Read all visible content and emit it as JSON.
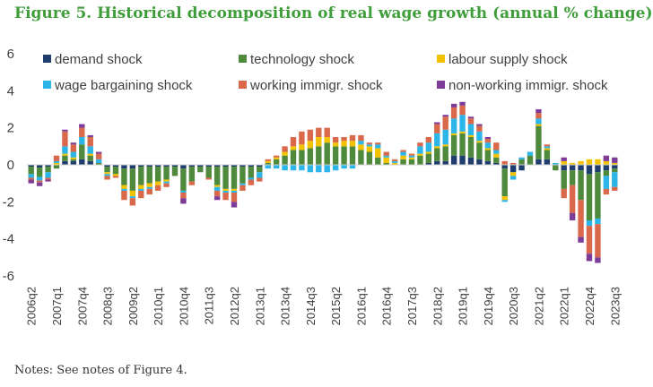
{
  "title": "Figure 5. Historical decomposition of real wage growth (annual % change)",
  "notes": "Notes: See notes of Figure 4.",
  "chart_data": {
    "type": "bar",
    "stacked": true,
    "ylim": [
      -6,
      6
    ],
    "yticks": [
      -6,
      -4,
      -2,
      0,
      2,
      4,
      6
    ],
    "ytick_labels": [
      "-6",
      "-4",
      "-2",
      "0",
      "2",
      "4",
      "6"
    ],
    "grid": false,
    "legend_position": "top",
    "categories": [
      "2006q2",
      "2006q3",
      "2006q4",
      "2007q1",
      "2007q2",
      "2007q3",
      "2007q4",
      "2008q1",
      "2008q2",
      "2008q3",
      "2008q4",
      "2009q1",
      "2009q2",
      "2009q3",
      "2009q4",
      "2010q1",
      "2010q2",
      "2010q3",
      "2010q4",
      "2011q1",
      "2011q2",
      "2011q3",
      "2011q4",
      "2012q1",
      "2012q2",
      "2012q3",
      "2012q4",
      "2013q1",
      "2013q2",
      "2013q3",
      "2013q4",
      "2014q1",
      "2014q2",
      "2014q3",
      "2014q4",
      "2015q1",
      "2015q2",
      "2015q3",
      "2015q4",
      "2016q1",
      "2016q2",
      "2016q3",
      "2016q4",
      "2017q1",
      "2017q2",
      "2017q3",
      "2017q4",
      "2018q1",
      "2018q2",
      "2018q3",
      "2018q4",
      "2019q1",
      "2019q2",
      "2019q3",
      "2019q4",
      "2020q1",
      "2020q2",
      "2020q3",
      "2020q4",
      "2021q1",
      "2021q2",
      "2021q3",
      "2021q4",
      "2022q1",
      "2022q2",
      "2022q3",
      "2022q4",
      "2023q1",
      "2023q2",
      "2023q3"
    ],
    "tick_labels": [
      "2006q2",
      "2007q1",
      "2007q4",
      "2008q3",
      "2009q2",
      "2010q1",
      "2010q4",
      "2011q3",
      "2012q2",
      "2013q1",
      "2013q4",
      "2014q3",
      "2015q2",
      "2016q1",
      "2016q4",
      "2017q3",
      "2018q2",
      "2019q1",
      "2019q4",
      "2020q3",
      "2021q2",
      "2022q1",
      "2022q4",
      "2023q3"
    ],
    "series": [
      {
        "name": "demand shock",
        "color": "#1f3e6e",
        "values": [
          -0.1,
          -0.15,
          -0.1,
          0.0,
          0.2,
          0.2,
          0.3,
          0.2,
          0.0,
          -0.1,
          -0.1,
          -0.2,
          -0.2,
          -0.1,
          -0.1,
          -0.1,
          -0.1,
          -0.1,
          -0.2,
          -0.1,
          -0.1,
          -0.1,
          -0.1,
          -0.1,
          -0.1,
          -0.1,
          -0.1,
          -0.1,
          0.0,
          0.0,
          0.0,
          0.0,
          0.0,
          0.0,
          0.0,
          0.0,
          0.0,
          0.0,
          0.0,
          0.0,
          0.0,
          0.0,
          0.0,
          0.0,
          0.0,
          0.0,
          0.0,
          0.1,
          0.2,
          0.2,
          0.5,
          0.5,
          0.4,
          0.3,
          0.2,
          0.1,
          -0.2,
          -0.4,
          -0.3,
          0.0,
          0.3,
          0.3,
          0.0,
          -0.3,
          -0.3,
          -0.3,
          -0.5,
          -0.4,
          -0.3,
          -0.2
        ]
      },
      {
        "name": "technology shock",
        "color": "#4f8a3c",
        "values": [
          -0.4,
          -0.5,
          -0.3,
          -0.2,
          0.3,
          0.1,
          0.8,
          0.3,
          0.1,
          -0.3,
          -0.4,
          -0.9,
          -1.2,
          -1.0,
          -0.9,
          -0.8,
          -0.7,
          -0.5,
          -1.2,
          -0.8,
          -0.3,
          -0.6,
          -1.0,
          -1.2,
          -1.2,
          -0.9,
          -0.6,
          -0.3,
          0.1,
          0.3,
          0.5,
          0.8,
          0.8,
          0.9,
          1.0,
          1.2,
          1.0,
          1.0,
          1.0,
          0.8,
          0.7,
          0.4,
          0.1,
          0.0,
          0.3,
          0.3,
          0.5,
          0.5,
          0.7,
          0.8,
          1.1,
          1.2,
          1.1,
          0.9,
          0.6,
          0.3,
          -1.5,
          0.0,
          0.3,
          0.5,
          1.8,
          0.5,
          -0.3,
          -1.0,
          -0.8,
          -1.6,
          -2.5,
          -2.5,
          -0.3,
          -0.2
        ]
      },
      {
        "name": "labour supply shock",
        "color": "#f2c200",
        "values": [
          0.0,
          0.0,
          0.0,
          0.1,
          0.1,
          0.1,
          0.0,
          0.1,
          0.0,
          -0.1,
          -0.1,
          -0.2,
          -0.3,
          -0.2,
          -0.2,
          -0.2,
          -0.1,
          0.0,
          0.0,
          0.0,
          0.0,
          0.0,
          -0.1,
          -0.1,
          -0.1,
          0.0,
          0.0,
          0.0,
          0.1,
          0.1,
          0.2,
          0.2,
          0.3,
          0.4,
          0.5,
          0.3,
          0.2,
          0.3,
          0.3,
          0.3,
          0.3,
          0.5,
          0.3,
          0.1,
          0.2,
          0.1,
          0.1,
          0.1,
          0.1,
          0.1,
          0.1,
          0.1,
          0.1,
          0.1,
          0.1,
          0.2,
          -0.2,
          -0.2,
          0.0,
          0.0,
          0.1,
          0.1,
          0.0,
          0.2,
          0.1,
          0.2,
          0.3,
          0.3,
          0.2,
          0.1
        ]
      },
      {
        "name": "wage bargaining shock",
        "color": "#2bb5e8",
        "values": [
          -0.2,
          -0.2,
          -0.3,
          0.1,
          0.4,
          0.3,
          0.4,
          0.4,
          0.2,
          -0.1,
          0.0,
          -0.1,
          -0.1,
          -0.1,
          -0.1,
          0.0,
          -0.1,
          0.0,
          -0.1,
          0.0,
          0.0,
          0.0,
          -0.2,
          -0.1,
          -0.1,
          -0.1,
          -0.1,
          -0.3,
          -0.2,
          -0.2,
          -0.3,
          -0.3,
          -0.3,
          -0.4,
          -0.4,
          -0.4,
          -0.3,
          -0.2,
          -0.2,
          0.2,
          0.1,
          0.2,
          0.1,
          0.1,
          0.2,
          0.1,
          0.4,
          0.5,
          0.7,
          0.8,
          0.8,
          0.9,
          0.6,
          0.5,
          0.3,
          0.2,
          -0.1,
          -0.2,
          0.1,
          0.2,
          0.3,
          0.1,
          0.1,
          0.0,
          0.0,
          0.0,
          -0.3,
          -0.3,
          -0.7,
          -0.8
        ]
      },
      {
        "name": "working immigr. shock",
        "color": "#d9694a",
        "values": [
          -0.1,
          -0.1,
          -0.1,
          0.3,
          0.8,
          0.4,
          0.5,
          0.5,
          0.3,
          -0.2,
          -0.1,
          -0.5,
          -0.4,
          -0.4,
          -0.3,
          -0.3,
          -0.2,
          0.0,
          -0.3,
          -0.2,
          0.0,
          -0.1,
          -0.3,
          -0.4,
          -0.5,
          -0.3,
          -0.3,
          -0.2,
          0.1,
          0.1,
          0.3,
          0.5,
          0.7,
          0.6,
          0.5,
          0.5,
          0.3,
          0.2,
          0.3,
          0.3,
          0.1,
          0.1,
          0.2,
          0.1,
          0.1,
          0.1,
          0.2,
          0.3,
          0.5,
          0.7,
          0.6,
          0.5,
          0.3,
          0.3,
          0.2,
          0.4,
          0.2,
          0.1,
          0.0,
          0.0,
          0.3,
          0.1,
          0.0,
          -0.5,
          -1.5,
          -2.0,
          -1.5,
          -1.8,
          -0.3,
          -0.2
        ]
      },
      {
        "name": "non-working immigr. shock",
        "color": "#7d3c98",
        "values": [
          -0.2,
          -0.2,
          -0.1,
          0.0,
          0.1,
          0.1,
          0.2,
          0.1,
          0.1,
          0.0,
          0.0,
          0.0,
          0.0,
          0.0,
          0.0,
          0.0,
          0.0,
          0.0,
          -0.3,
          0.0,
          0.0,
          0.0,
          -0.2,
          0.0,
          -0.3,
          0.0,
          0.0,
          0.0,
          0.0,
          0.0,
          0.0,
          0.0,
          0.0,
          0.0,
          0.0,
          0.0,
          0.0,
          0.0,
          0.0,
          0.0,
          0.0,
          0.0,
          0.0,
          0.0,
          0.0,
          0.0,
          0.0,
          0.0,
          0.1,
          0.1,
          0.2,
          0.2,
          0.1,
          0.1,
          0.1,
          0.0,
          0.0,
          0.0,
          0.0,
          0.0,
          0.2,
          0.0,
          0.0,
          0.2,
          -0.4,
          -0.3,
          -0.4,
          -0.3,
          0.3,
          0.3
        ]
      }
    ]
  }
}
